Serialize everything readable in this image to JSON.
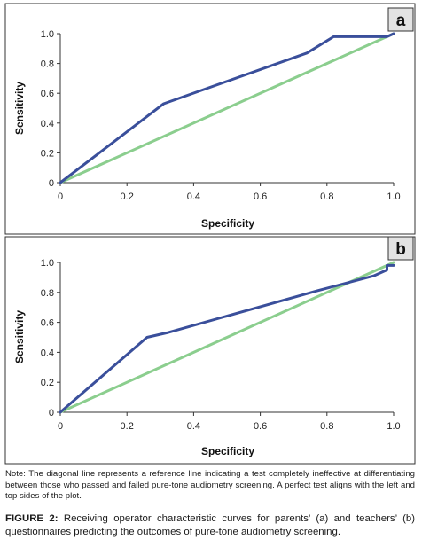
{
  "colors": {
    "roc_line": "#3a4f9b",
    "reference_line": "#8bce8e",
    "axis": "#333333",
    "frame": "#333333",
    "panel_label_bg": "#e3e3e3"
  },
  "chart_data": [
    {
      "type": "line",
      "panel_label": "a",
      "xlabel": "Specificity",
      "ylabel": "Sensitivity",
      "xlim": [
        0,
        1
      ],
      "ylim": [
        0,
        1
      ],
      "x_ticks": [
        "0",
        "0.2",
        "0.4",
        "0.6",
        "0.8",
        "1.0"
      ],
      "y_ticks": [
        "0",
        "0.2",
        "0.4",
        "0.6",
        "0.8",
        "1.0"
      ],
      "grid": false,
      "series": [
        {
          "role": "roc",
          "x": [
            0,
            0.31,
            0.74,
            0.82,
            0.98,
            1.0
          ],
          "y": [
            0,
            0.53,
            0.87,
            0.98,
            0.98,
            1.0
          ]
        },
        {
          "role": "reference",
          "x": [
            0,
            1.0
          ],
          "y": [
            0,
            1.0
          ]
        }
      ]
    },
    {
      "type": "line",
      "panel_label": "b",
      "xlabel": "Specificity",
      "ylabel": "Sensitivity",
      "xlim": [
        0,
        1
      ],
      "ylim": [
        0,
        1
      ],
      "x_ticks": [
        "0",
        "0.2",
        "0.4",
        "0.6",
        "0.8",
        "1.0"
      ],
      "y_ticks": [
        "0",
        "0.2",
        "0.4",
        "0.6",
        "0.8",
        "1.0"
      ],
      "grid": false,
      "series": [
        {
          "role": "roc",
          "x": [
            0,
            0.26,
            0.32,
            0.77,
            0.94,
            0.98,
            0.98,
            1.0
          ],
          "y": [
            0,
            0.5,
            0.53,
            0.81,
            0.91,
            0.95,
            0.98,
            0.98
          ]
        },
        {
          "role": "reference",
          "x": [
            0,
            1.0
          ],
          "y": [
            0,
            1.0
          ]
        }
      ]
    }
  ],
  "note": "Note: The diagonal line represents a reference line indicating a test completely ineffective at differentiating between those who passed and failed pure-tone audiometry screening. A perfect test aligns with the left and top sides of the plot.",
  "caption": {
    "label": "FIGURE 2:",
    "text": " Receiving operator characteristic curves for parents’ (a) and teachers’ (b) questionnaires predicting the outcomes of pure-tone audiometry screening."
  }
}
